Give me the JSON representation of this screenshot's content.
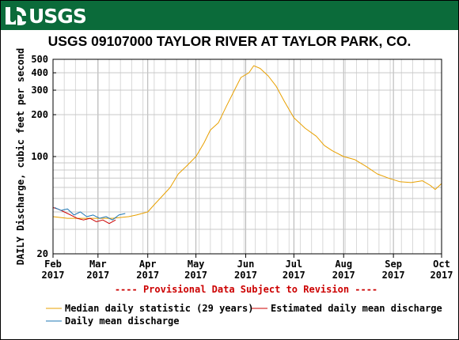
{
  "header": {
    "logo_text": "USGS",
    "logo_icon": "usgs-wave-icon",
    "brand_color": "#0b6b3a"
  },
  "chart_data": {
    "type": "line",
    "title": "USGS 09107000 TAYLOR RIVER AT TAYLOR PARK, CO.",
    "ylabel": "DAILY Discharge, cubic feet per second",
    "xlabel": "",
    "yscale": "log",
    "ylim": [
      20,
      500
    ],
    "y_ticks": [
      20,
      100,
      200,
      300,
      400,
      500
    ],
    "grid": true,
    "x_start": "2017-02-01",
    "x_end": "2017-10-01",
    "x_ticks": [
      {
        "date": "2017-02-01",
        "month": "Feb",
        "year": "2017"
      },
      {
        "date": "2017-03-01",
        "month": "Mar",
        "year": "2017"
      },
      {
        "date": "2017-04-01",
        "month": "Apr",
        "year": "2017"
      },
      {
        "date": "2017-05-01",
        "month": "May",
        "year": "2017"
      },
      {
        "date": "2017-06-01",
        "month": "Jun",
        "year": "2017"
      },
      {
        "date": "2017-07-01",
        "month": "Jul",
        "year": "2017"
      },
      {
        "date": "2017-08-01",
        "month": "Aug",
        "year": "2017"
      },
      {
        "date": "2017-09-01",
        "month": "Sep",
        "year": "2017"
      },
      {
        "date": "2017-10-01",
        "month": "Oct",
        "year": "2017"
      }
    ],
    "annotation": "---- Provisional Data Subject to Revision ----",
    "annotation_color": "#cc0000",
    "legend_position": "bottom",
    "series": [
      {
        "name": "Median daily statistic (29 years)",
        "color": "#e8a000",
        "points": [
          [
            "2017-02-01",
            37
          ],
          [
            "2017-02-10",
            36
          ],
          [
            "2017-02-20",
            36
          ],
          [
            "2017-03-01",
            36
          ],
          [
            "2017-03-10",
            36
          ],
          [
            "2017-03-20",
            37
          ],
          [
            "2017-03-25",
            38
          ],
          [
            "2017-04-01",
            40
          ],
          [
            "2017-04-05",
            45
          ],
          [
            "2017-04-10",
            52
          ],
          [
            "2017-04-15",
            60
          ],
          [
            "2017-04-20",
            75
          ],
          [
            "2017-04-25",
            85
          ],
          [
            "2017-05-01",
            100
          ],
          [
            "2017-05-06",
            125
          ],
          [
            "2017-05-10",
            155
          ],
          [
            "2017-05-15",
            175
          ],
          [
            "2017-05-20",
            230
          ],
          [
            "2017-05-25",
            300
          ],
          [
            "2017-05-29",
            370
          ],
          [
            "2017-06-03",
            400
          ],
          [
            "2017-06-06",
            450
          ],
          [
            "2017-06-10",
            430
          ],
          [
            "2017-06-15",
            380
          ],
          [
            "2017-06-20",
            320
          ],
          [
            "2017-06-25",
            250
          ],
          [
            "2017-07-01",
            190
          ],
          [
            "2017-07-08",
            160
          ],
          [
            "2017-07-15",
            140
          ],
          [
            "2017-07-20",
            120
          ],
          [
            "2017-07-25",
            110
          ],
          [
            "2017-08-01",
            100
          ],
          [
            "2017-08-08",
            95
          ],
          [
            "2017-08-15",
            85
          ],
          [
            "2017-08-22",
            75
          ],
          [
            "2017-08-29",
            70
          ],
          [
            "2017-09-05",
            66
          ],
          [
            "2017-09-12",
            65
          ],
          [
            "2017-09-19",
            67
          ],
          [
            "2017-09-24",
            62
          ],
          [
            "2017-09-27",
            58
          ],
          [
            "2017-10-01",
            64
          ]
        ]
      },
      {
        "name": "Estimated daily mean discharge",
        "color": "#cc0000",
        "points": [
          [
            "2017-02-01",
            43
          ],
          [
            "2017-02-04",
            42
          ],
          [
            "2017-02-08",
            40
          ],
          [
            "2017-02-12",
            38
          ],
          [
            "2017-02-16",
            36
          ],
          [
            "2017-02-20",
            35
          ],
          [
            "2017-02-24",
            36
          ],
          [
            "2017-02-28",
            34
          ],
          [
            "2017-03-04",
            35
          ],
          [
            "2017-03-08",
            33
          ],
          [
            "2017-03-12",
            35
          ]
        ]
      },
      {
        "name": "Daily mean discharge",
        "color": "#1f77b4",
        "points": [
          [
            "2017-02-02",
            43
          ],
          [
            "2017-02-06",
            41
          ],
          [
            "2017-02-10",
            42
          ],
          [
            "2017-02-14",
            38
          ],
          [
            "2017-02-18",
            40
          ],
          [
            "2017-02-22",
            37
          ],
          [
            "2017-02-26",
            38
          ],
          [
            "2017-03-02",
            36
          ],
          [
            "2017-03-06",
            37
          ],
          [
            "2017-03-10",
            35
          ],
          [
            "2017-03-14",
            38
          ],
          [
            "2017-03-18",
            39
          ]
        ]
      }
    ]
  }
}
